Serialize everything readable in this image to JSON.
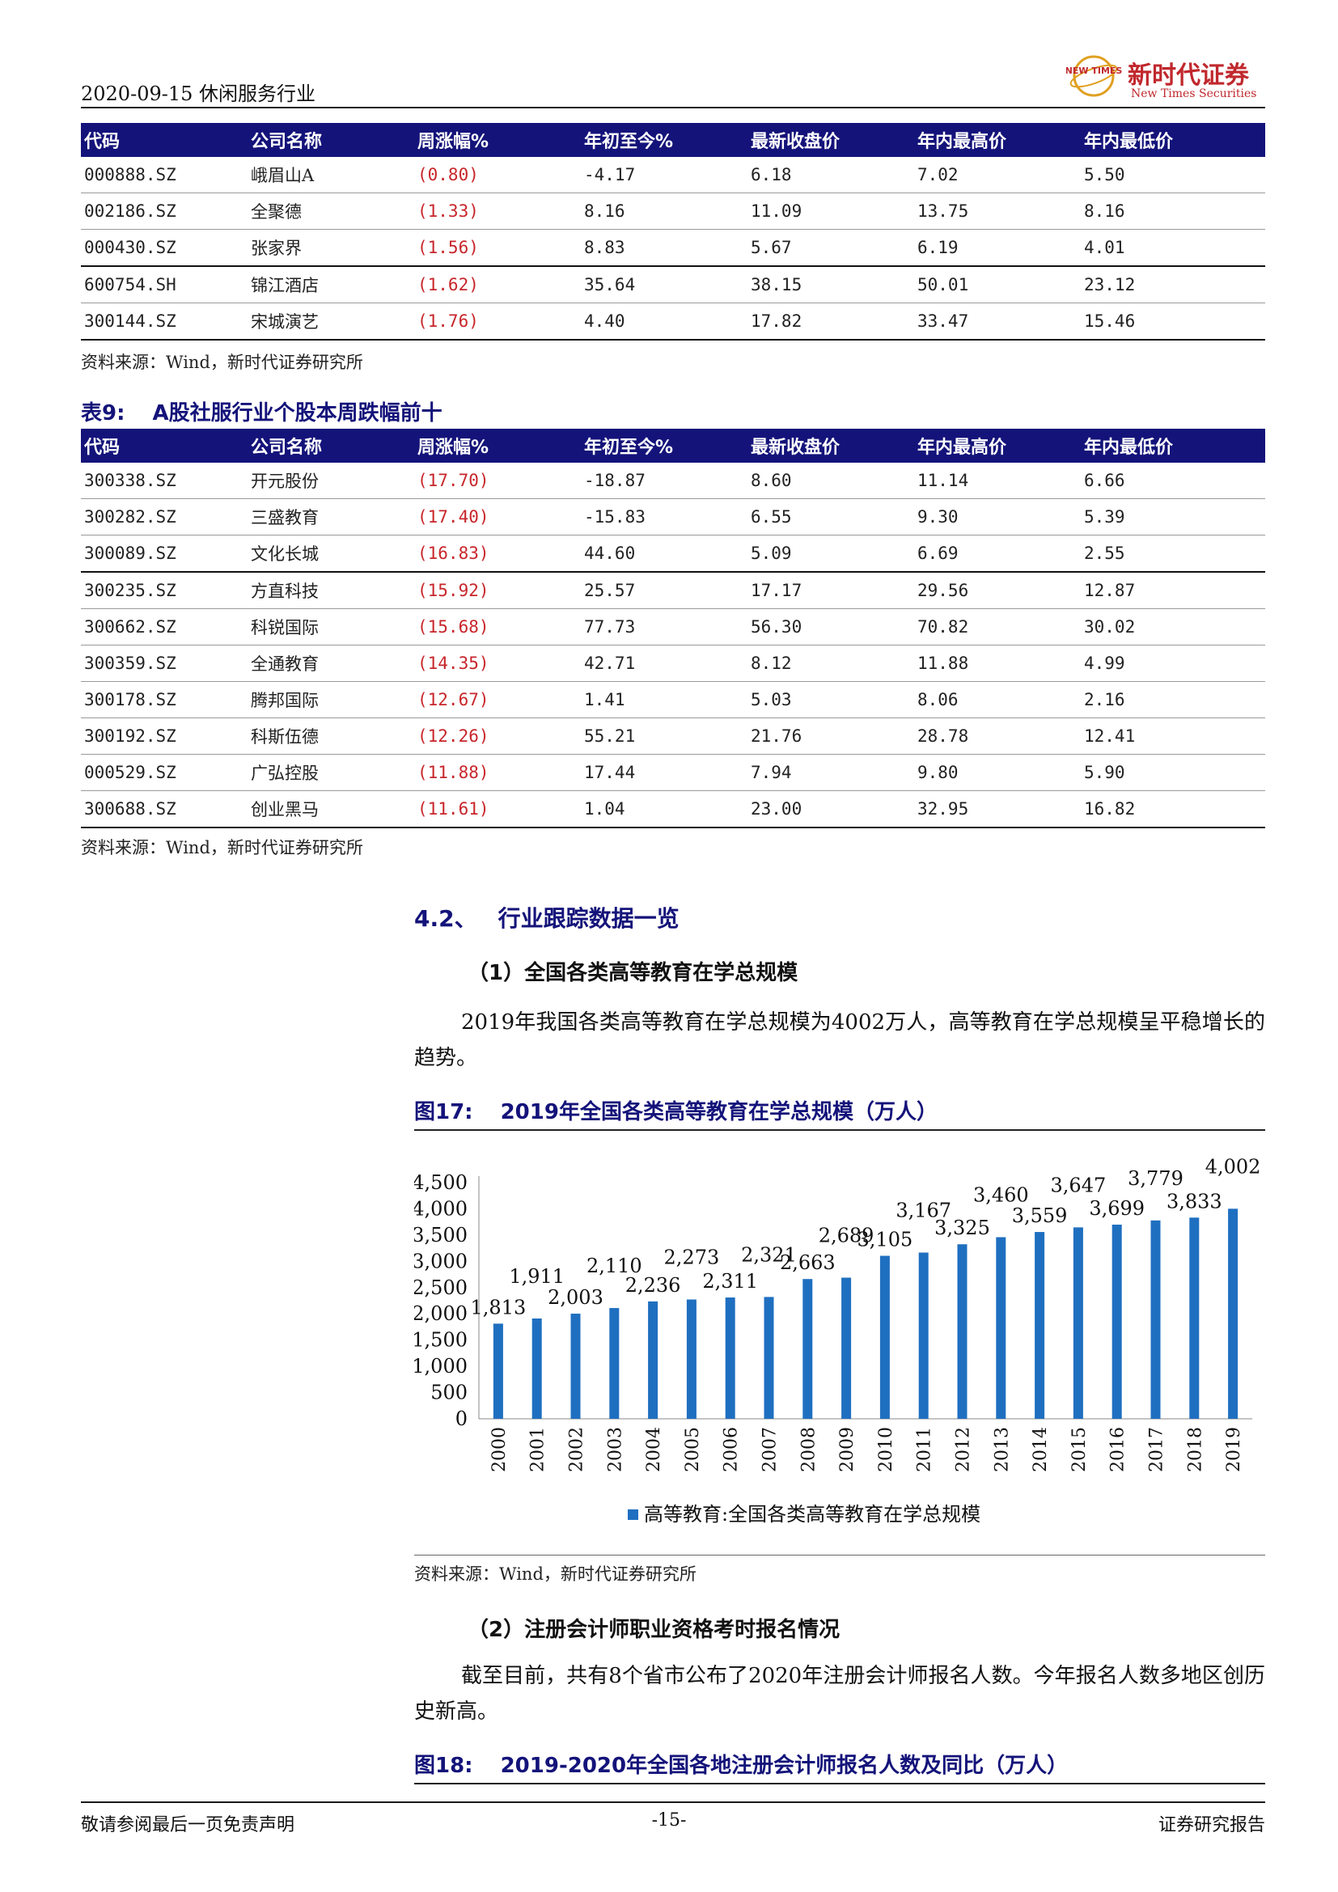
{
  "header": {
    "date_industry": "2020-09-15 休闲服务行业",
    "logo_cn": "新时代证券",
    "logo_en": "New Times Securities",
    "logo_mark_text": "NEW TIMES"
  },
  "columns": [
    "代码",
    "公司名称",
    "周涨幅%",
    "年初至今%",
    "最新收盘价",
    "年内最高价",
    "年内最低价"
  ],
  "table_top": {
    "rows": [
      [
        "000888.SZ",
        "峨眉山A",
        "(0.80)",
        "-4.17",
        "6.18",
        "7.02",
        "5.50"
      ],
      [
        "002186.SZ",
        "全聚德",
        "(1.33)",
        "8.16",
        "11.09",
        "13.75",
        "8.16"
      ],
      [
        "000430.SZ",
        "张家界",
        "(1.56)",
        "8.83",
        "5.67",
        "6.19",
        "4.01"
      ],
      [
        "600754.SH",
        "锦江酒店",
        "(1.62)",
        "35.64",
        "38.15",
        "50.01",
        "23.12"
      ],
      [
        "300144.SZ",
        "宋城演艺",
        "(1.76)",
        "4.40",
        "17.82",
        "33.47",
        "15.46"
      ]
    ],
    "source": "资料来源：Wind，新时代证券研究所"
  },
  "table9": {
    "label": "表9:",
    "title": "A股社服行业个股本周跌幅前十",
    "rows": [
      [
        "300338.SZ",
        "开元股份",
        "(17.70)",
        "-18.87",
        "8.60",
        "11.14",
        "6.66"
      ],
      [
        "300282.SZ",
        "三盛教育",
        "(17.40)",
        "-15.83",
        "6.55",
        "9.30",
        "5.39"
      ],
      [
        "300089.SZ",
        "文化长城",
        "(16.83)",
        "44.60",
        "5.09",
        "6.69",
        "2.55"
      ],
      [
        "300235.SZ",
        "方直科技",
        "(15.92)",
        "25.57",
        "17.17",
        "29.56",
        "12.87"
      ],
      [
        "300662.SZ",
        "科锐国际",
        "(15.68)",
        "77.73",
        "56.30",
        "70.82",
        "30.02"
      ],
      [
        "300359.SZ",
        "全通教育",
        "(14.35)",
        "42.71",
        "8.12",
        "11.88",
        "4.99"
      ],
      [
        "300178.SZ",
        "腾邦国际",
        "(12.67)",
        "1.41",
        "5.03",
        "8.06",
        "2.16"
      ],
      [
        "300192.SZ",
        "科斯伍德",
        "(12.26)",
        "55.21",
        "21.76",
        "28.78",
        "12.41"
      ],
      [
        "000529.SZ",
        "广弘控股",
        "(11.88)",
        "17.44",
        "7.94",
        "9.80",
        "5.90"
      ],
      [
        "300688.SZ",
        "创业黑马",
        "(11.61)",
        "1.04",
        "23.00",
        "32.95",
        "16.82"
      ]
    ],
    "source": "资料来源：Wind，新时代证券研究所"
  },
  "section": {
    "num": "4.2、",
    "title": "行业跟踪数据一览",
    "sub1": "（1）全国各类高等教育在学总规模",
    "para1": "2019年我国各类高等教育在学总规模为4002万人，高等教育在学总规模呈平稳增长的趋势。",
    "fig17_label": "图17:",
    "fig17_title": "2019年全国各类高等教育在学总规模（万人）",
    "fig17_source": "资料来源：Wind，新时代证券研究所",
    "sub2": "（2）注册会计师职业资格考时报名情况",
    "para2": "截至目前，共有8个省市公布了2020年注册会计师报名人数。今年报名人数多地区创历史新高。",
    "fig18_label": "图18:",
    "fig18_title": "2019-2020年全国各地注册会计师报名人数及同比（万人）"
  },
  "chart_data": {
    "type": "bar",
    "categories": [
      "2000",
      "2001",
      "2002",
      "2003",
      "2004",
      "2005",
      "2006",
      "2007",
      "2008",
      "2009",
      "2010",
      "2011",
      "2012",
      "2013",
      "2014",
      "2015",
      "2016",
      "2017",
      "2018",
      "2019"
    ],
    "series": [
      {
        "name": "高等教育:全国各类高等教育在学总规模",
        "values": [
          1813,
          1911,
          2003,
          2110,
          2236,
          2273,
          2311,
          2321,
          2663,
          2689,
          3105,
          3167,
          3325,
          3460,
          3559,
          3647,
          3699,
          3779,
          3833,
          4002
        ]
      }
    ],
    "data_labels": [
      "1,813",
      "1,911",
      "2,003",
      "2,110",
      "2,236",
      "2,273",
      "2,311",
      "2,321",
      "2,663",
      "2,689",
      "3,105",
      "3,167",
      "3,325",
      "3,460",
      "3,559",
      "3,647",
      "3,699",
      "3,779",
      "3,833",
      "4,002"
    ],
    "y_ticks": [
      0,
      500,
      1000,
      1500,
      2000,
      2500,
      3000,
      3500,
      4000,
      4500
    ],
    "y_tick_labels": [
      "0",
      "500",
      "1,000",
      "1,500",
      "2,000",
      "2,500",
      "3,000",
      "3,500",
      "4,000",
      "4,500"
    ],
    "ylim": [
      0,
      4500
    ],
    "bar_color": "#1f6fc0",
    "legend": "bottom",
    "grid": false
  },
  "footer": {
    "left": "敬请参阅最后一页免责声明",
    "page": "-15-",
    "right": "证券研究报告"
  }
}
